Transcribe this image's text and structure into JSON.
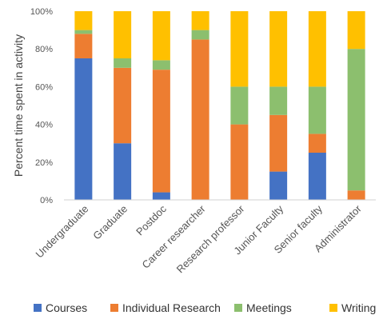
{
  "chart_data": {
    "type": "bar",
    "stacked": true,
    "categories": [
      "Undergraduate",
      "Graduate",
      "Postdoc",
      "Career researcher",
      "Research professor",
      "Junior Faculty",
      "Senior faculty",
      "Administrator"
    ],
    "series": [
      {
        "name": "Courses",
        "color": "#4472C4",
        "values": [
          75,
          30,
          4,
          0,
          0,
          15,
          25,
          0
        ]
      },
      {
        "name": "Individual Research",
        "color": "#ED7D31",
        "values": [
          13,
          40,
          65,
          85,
          40,
          30,
          10,
          5
        ]
      },
      {
        "name": "Meetings",
        "color": "#8CBF6E",
        "values": [
          2,
          5,
          5,
          5,
          20,
          15,
          25,
          75
        ]
      },
      {
        "name": "Writing",
        "color": "#FFC000",
        "values": [
          10,
          25,
          26,
          10,
          40,
          40,
          40,
          20
        ]
      }
    ],
    "ylabel": "Percent time spent in activity",
    "ylim": [
      0,
      100
    ],
    "yticks": [
      "0%",
      "20%",
      "40%",
      "60%",
      "80%",
      "100%"
    ],
    "grid": false,
    "legend": "bottom"
  }
}
